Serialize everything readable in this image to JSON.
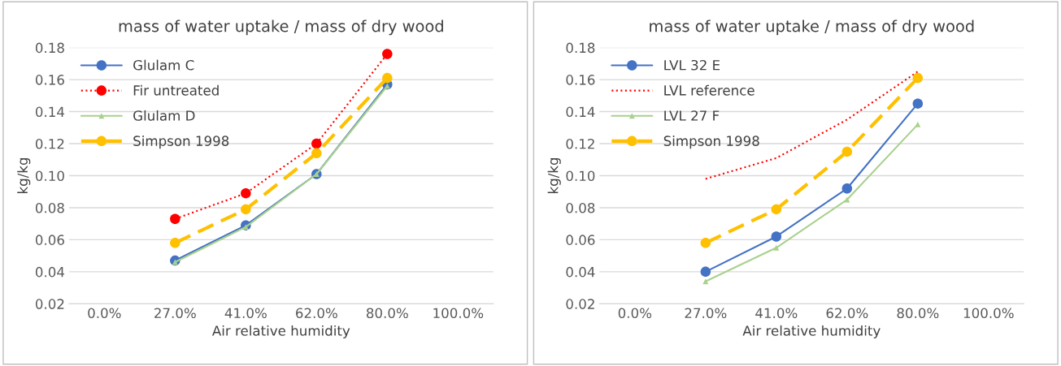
{
  "chart_data": [
    {
      "type": "line",
      "title": "mass of water uptake / mass of dry wood",
      "xlabel": "Air relative humidity",
      "ylabel": "kg/kg",
      "categories": [
        "0.0%",
        "27.0%",
        "41.0%",
        "62.0%",
        "80.0%",
        "100.0%"
      ],
      "ylim": [
        0.02,
        0.18
      ],
      "yticks": [
        {
          "value": 0.02,
          "label": "0.02"
        },
        {
          "value": 0.04,
          "label": "0.04"
        },
        {
          "value": 0.06,
          "label": "0.06"
        },
        {
          "value": 0.08,
          "label": "0.08"
        },
        {
          "value": 0.1,
          "label": "0.10"
        },
        {
          "value": 0.12,
          "label": "0.12"
        },
        {
          "value": 0.14,
          "label": "0.14"
        },
        {
          "value": 0.16,
          "label": "0.16"
        },
        {
          "value": 0.18,
          "label": "0.18"
        }
      ],
      "grid": "y",
      "legend": "top left",
      "series": [
        {
          "name": "Glulam C",
          "color": "#4472c4",
          "marker": "circle",
          "line_style": "solid",
          "values": [
            null,
            0.047,
            0.069,
            0.101,
            0.157,
            null
          ]
        },
        {
          "name": "Fir untreated",
          "color": "#ff0000",
          "marker": "circle",
          "line_style": "dotted",
          "values": [
            null,
            0.073,
            0.089,
            0.12,
            0.176,
            null
          ]
        },
        {
          "name": "Glulam D",
          "color": "#a9d18e",
          "marker": "triangle",
          "line_style": "solid",
          "values": [
            null,
            0.046,
            0.068,
            0.101,
            0.156,
            null
          ]
        },
        {
          "name": "Simpson 1998",
          "color": "#ffc000",
          "marker": "circle",
          "line_style": "dashed",
          "values": [
            null,
            0.058,
            0.079,
            0.114,
            0.161,
            null
          ]
        }
      ]
    },
    {
      "type": "line",
      "title": "mass of water uptake / mass of dry wood",
      "xlabel": "Air relative humidity",
      "ylabel": "kg/kg",
      "categories": [
        "0.0%",
        "27.0%",
        "41.0%",
        "62.0%",
        "80.0%",
        "100.0%"
      ],
      "ylim": [
        0.02,
        0.18
      ],
      "yticks": [
        {
          "value": 0.02,
          "label": "0.02"
        },
        {
          "value": 0.04,
          "label": "0.04"
        },
        {
          "value": 0.06,
          "label": "0.06"
        },
        {
          "value": 0.08,
          "label": "0.08"
        },
        {
          "value": 0.1,
          "label": "0.10"
        },
        {
          "value": 0.12,
          "label": "0.12"
        },
        {
          "value": 0.14,
          "label": "0.14"
        },
        {
          "value": 0.16,
          "label": "0.16"
        },
        {
          "value": 0.18,
          "label": "0.18"
        }
      ],
      "grid": "y",
      "legend": "top left",
      "series": [
        {
          "name": "LVL 32 E",
          "color": "#4472c4",
          "marker": "circle",
          "line_style": "solid",
          "values": [
            null,
            0.04,
            0.062,
            0.092,
            0.145,
            null
          ]
        },
        {
          "name": "LVL reference",
          "color": "#ff0000",
          "marker": "none",
          "line_style": "dotted",
          "values": [
            null,
            0.098,
            0.111,
            0.135,
            0.165,
            null
          ]
        },
        {
          "name": "LVL 27 F",
          "color": "#a9d18e",
          "marker": "triangle",
          "line_style": "solid",
          "values": [
            null,
            0.034,
            0.055,
            0.085,
            0.132,
            null
          ]
        },
        {
          "name": "Simpson 1998",
          "color": "#ffc000",
          "marker": "circle",
          "line_style": "dashed",
          "values": [
            null,
            0.058,
            0.079,
            0.115,
            0.161,
            null
          ]
        }
      ]
    }
  ]
}
